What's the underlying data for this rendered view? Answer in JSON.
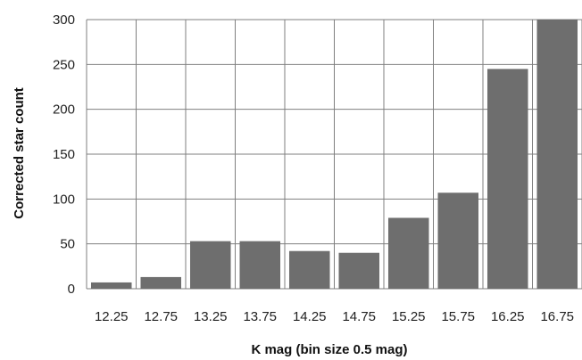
{
  "chart_data": {
    "type": "bar",
    "categories": [
      "12.25",
      "12.75",
      "13.25",
      "13.75",
      "14.25",
      "14.75",
      "15.25",
      "15.75",
      "16.25",
      "16.75"
    ],
    "values": [
      7,
      13,
      53,
      53,
      42,
      40,
      79,
      107,
      245,
      300
    ],
    "title": "",
    "xlabel": "K mag (bin size 0.5 mag)",
    "ylabel": "Corrected star count",
    "ylim": [
      0,
      300
    ],
    "yticks": [
      0,
      50,
      100,
      150,
      200,
      250,
      300
    ],
    "grid": true,
    "bar_color": "#6e6e6e",
    "grid_color": "#7f7f7f"
  }
}
